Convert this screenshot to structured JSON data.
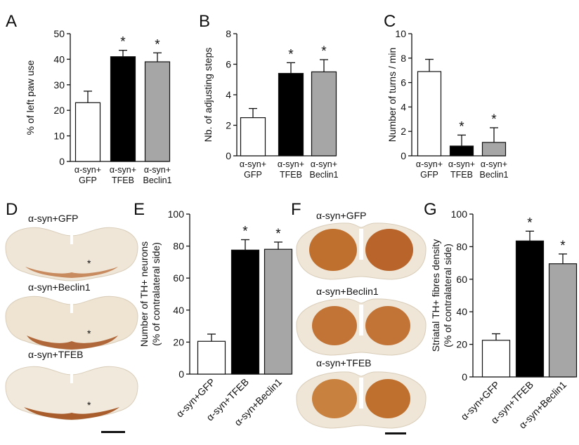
{
  "figure_title": "",
  "chart_data": [
    {
      "id": "A",
      "type": "bar",
      "panel_label": "A",
      "ylabel": "% of left paw use",
      "ylim": [
        0,
        50
      ],
      "yticks": [
        0,
        10,
        20,
        30,
        40,
        50
      ],
      "categories": [
        [
          "α-syn+",
          "GFP"
        ],
        [
          "α-syn+",
          "TFEB"
        ],
        [
          "α-syn+",
          "Beclin1"
        ]
      ],
      "values": [
        23,
        41,
        39
      ],
      "errors": [
        4.5,
        2.5,
        3.5
      ],
      "significance": [
        "",
        "*",
        "*"
      ],
      "bar_colors": [
        "#ffffff",
        "#000000",
        "#a6a6a6"
      ]
    },
    {
      "id": "B",
      "type": "bar",
      "panel_label": "B",
      "ylabel": "Nb. of adjusting steps",
      "ylim": [
        0,
        8
      ],
      "yticks": [
        0,
        2,
        4,
        6,
        8
      ],
      "categories": [
        [
          "α-syn+",
          "GFP"
        ],
        [
          "α-syn+",
          "TFEB"
        ],
        [
          "α-syn+",
          "Beclin1"
        ]
      ],
      "values": [
        2.5,
        5.4,
        5.5
      ],
      "errors": [
        0.6,
        0.7,
        0.8
      ],
      "significance": [
        "",
        "*",
        "*"
      ],
      "bar_colors": [
        "#ffffff",
        "#000000",
        "#a6a6a6"
      ]
    },
    {
      "id": "C",
      "type": "bar",
      "panel_label": "C",
      "ylabel": "Number of turns / min",
      "ylim": [
        0,
        10
      ],
      "yticks": [
        0,
        2,
        4,
        6,
        8,
        10
      ],
      "categories": [
        [
          "α-syn+",
          "GFP"
        ],
        [
          "α-syn+",
          "TFEB"
        ],
        [
          "α-syn+",
          "Beclin1"
        ]
      ],
      "values": [
        6.9,
        0.8,
        1.1
      ],
      "errors": [
        1.0,
        0.9,
        1.2
      ],
      "significance": [
        "",
        "*",
        "*"
      ],
      "bar_colors": [
        "#ffffff",
        "#000000",
        "#a6a6a6"
      ]
    },
    {
      "id": "E",
      "type": "bar",
      "panel_label": "E",
      "ylabel": [
        "Number of TH+ neurons",
        "(% of contralateral side)"
      ],
      "ylim": [
        0,
        100
      ],
      "yticks": [
        0,
        20,
        40,
        60,
        80,
        100
      ],
      "categories": [
        "α-syn+GFP",
        "α-syn+TFEB",
        "α-syn+Beclin1"
      ],
      "values": [
        20.5,
        77.5,
        78
      ],
      "errors": [
        4.5,
        6.5,
        4.5
      ],
      "significance": [
        "",
        "*",
        "*"
      ],
      "bar_colors": [
        "#ffffff",
        "#000000",
        "#a6a6a6"
      ]
    },
    {
      "id": "G",
      "type": "bar",
      "panel_label": "G",
      "ylabel": [
        "Striatal TH+ fibres density",
        "(% of contralateral side)"
      ],
      "ylim": [
        0,
        100
      ],
      "yticks": [
        0,
        20,
        40,
        60,
        80,
        100
      ],
      "categories": [
        "α-syn+GFP",
        "α-syn+TFEB",
        "α-syn+Beclin1"
      ],
      "values": [
        22.5,
        83.5,
        69.5
      ],
      "errors": [
        4,
        6,
        6
      ],
      "significance": [
        "",
        "*",
        "*"
      ],
      "bar_colors": [
        "#ffffff",
        "#000000",
        "#a6a6a6"
      ]
    }
  ],
  "image_panels": {
    "D": {
      "panel_label": "D",
      "sections": [
        "α-syn+GFP",
        "α-syn+Beclin1",
        "α-syn+TFEB"
      ],
      "lesion_marker": "*"
    },
    "F": {
      "panel_label": "F",
      "sections": [
        "α-syn+GFP",
        "α-syn+Beclin1",
        "α-syn+TFEB"
      ]
    }
  },
  "colors": {
    "axis": "#111111",
    "tissue": "#efe6d8",
    "stain": "#b8642a",
    "stain_dark": "#a14e1a"
  }
}
